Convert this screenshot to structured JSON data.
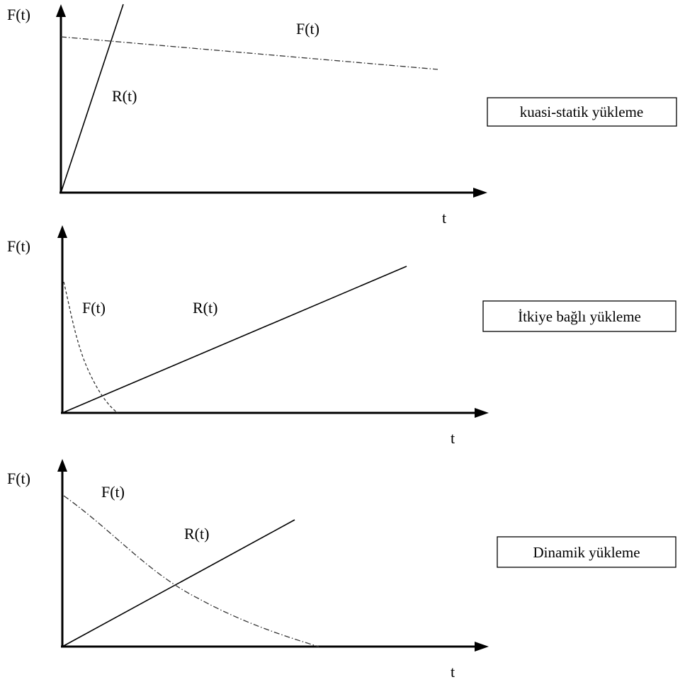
{
  "panels": [
    {
      "id": "quasi-static",
      "y_axis_label": "F(t)",
      "x_axis_label": "t",
      "force_label": "F(t)",
      "resistance_label": "R(t)",
      "box_label": "kuasi-statik yükleme"
    },
    {
      "id": "impulse",
      "y_axis_label": "F(t)",
      "x_axis_label": "t",
      "force_label": "F(t)",
      "resistance_label": "R(t)",
      "box_label": "İtkiye bağlı yükleme"
    },
    {
      "id": "dynamic",
      "y_axis_label": "F(t)",
      "x_axis_label": "t",
      "force_label": "F(t)",
      "resistance_label": "R(t)",
      "box_label": "Dinamik yükleme"
    }
  ]
}
